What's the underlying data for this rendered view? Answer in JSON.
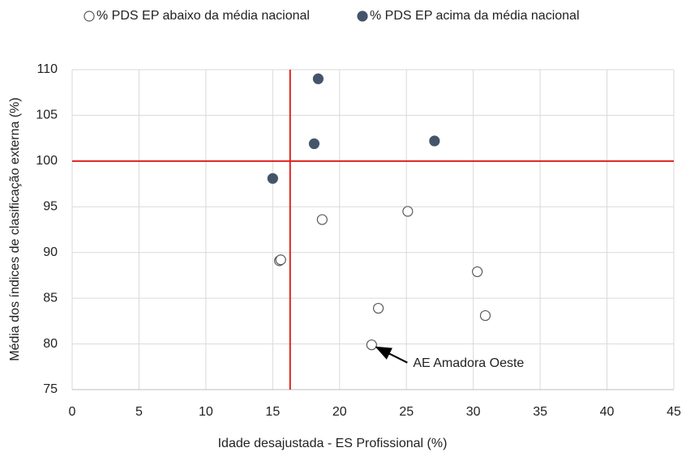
{
  "chart_data": {
    "type": "scatter",
    "xlabel": "Idade desajustada - ES Profissional (%)",
    "ylabel": "Média dos índices de clasificação externa (%)",
    "series": [
      {
        "name": "% PDS EP abaixo da média nacional",
        "color": "#595959",
        "filled": false,
        "x": [
          18.7,
          25.1,
          15.5,
          15.6,
          22.9,
          22.4,
          30.3,
          30.9
        ],
        "values": [
          93.6,
          94.5,
          89.1,
          89.2,
          83.9,
          79.9,
          87.9,
          83.1
        ]
      },
      {
        "name": "% PDS EP acima da média nacional",
        "color": "#44546a",
        "filled": true,
        "x": [
          15.0,
          18.4,
          18.1,
          27.1
        ],
        "values": [
          98.1,
          109.0,
          101.9,
          102.2
        ]
      }
    ],
    "xlim": [
      0,
      45
    ],
    "xticks": [
      0,
      5,
      10,
      15,
      20,
      25,
      30,
      35,
      40,
      45
    ],
    "ylim": [
      75,
      110
    ],
    "yticks": [
      75,
      80,
      85,
      90,
      95,
      100,
      105,
      110
    ],
    "grid": true,
    "reference_lines": {
      "x": 16.3,
      "y": 100,
      "color": "#e02020"
    },
    "annotation": {
      "text": "AE Amadora Oeste",
      "x": 22.4,
      "y": 79.9
    }
  }
}
